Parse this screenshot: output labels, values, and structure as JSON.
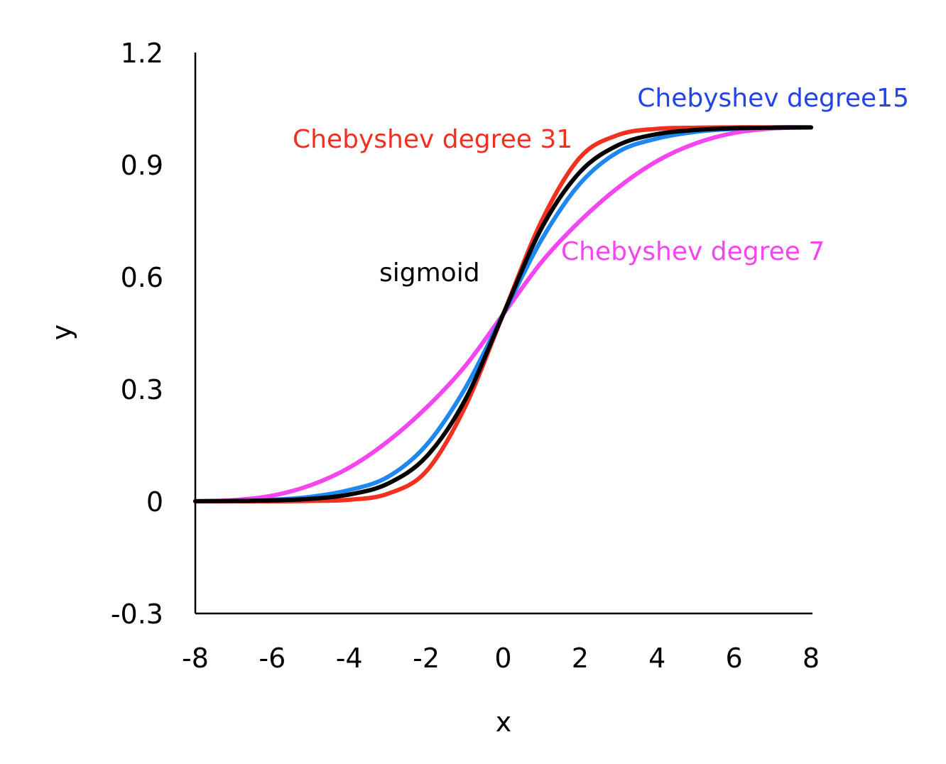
{
  "chart_data": {
    "type": "line",
    "xlabel": "x",
    "ylabel": "y",
    "xlim": [
      -8,
      8
    ],
    "ylim": [
      -0.3,
      1.2
    ],
    "xticks": [
      "-8",
      "-6",
      "-4",
      "-2",
      "0",
      "2",
      "4",
      "6",
      "8"
    ],
    "yticks": [
      "-0.3",
      "0",
      "0.3",
      "0.6",
      "0.9",
      "1.2"
    ],
    "grid": false,
    "legend": "none",
    "x": [
      -8,
      -7,
      -6,
      -5,
      -4,
      -3,
      -2,
      -1,
      0,
      1,
      2,
      3,
      4,
      5,
      6,
      7,
      8
    ],
    "series": [
      {
        "name": "Chebyshev degree 7",
        "color": "#f545f0",
        "values": [
          0.0,
          0.003,
          0.015,
          0.043,
          0.09,
          0.16,
          0.25,
          0.36,
          0.5,
          0.64,
          0.75,
          0.84,
          0.91,
          0.957,
          0.985,
          0.997,
          1.0
        ]
      },
      {
        "name": "Chebyshev degree15",
        "color": "#1e88f0",
        "values": [
          0.0,
          0.0,
          0.004,
          0.012,
          0.03,
          0.065,
          0.15,
          0.3,
          0.5,
          0.7,
          0.85,
          0.935,
          0.97,
          0.988,
          0.996,
          1.0,
          1.0
        ]
      },
      {
        "name": "Chebyshev degree 31",
        "color": "#f23020",
        "values": [
          0.0,
          0.0,
          0.0,
          0.001,
          0.004,
          0.02,
          0.08,
          0.25,
          0.5,
          0.75,
          0.92,
          0.98,
          0.996,
          0.999,
          1.0,
          1.0,
          1.0
        ]
      },
      {
        "name": "sigmoid",
        "color": "#000000",
        "values": [
          0.0003,
          0.0009,
          0.0025,
          0.0067,
          0.018,
          0.047,
          0.119,
          0.269,
          0.5,
          0.731,
          0.881,
          0.953,
          0.982,
          0.993,
          0.9975,
          0.9991,
          0.9997
        ]
      }
    ]
  },
  "colors": {
    "axis": "#000000",
    "background": "#ffffff"
  }
}
